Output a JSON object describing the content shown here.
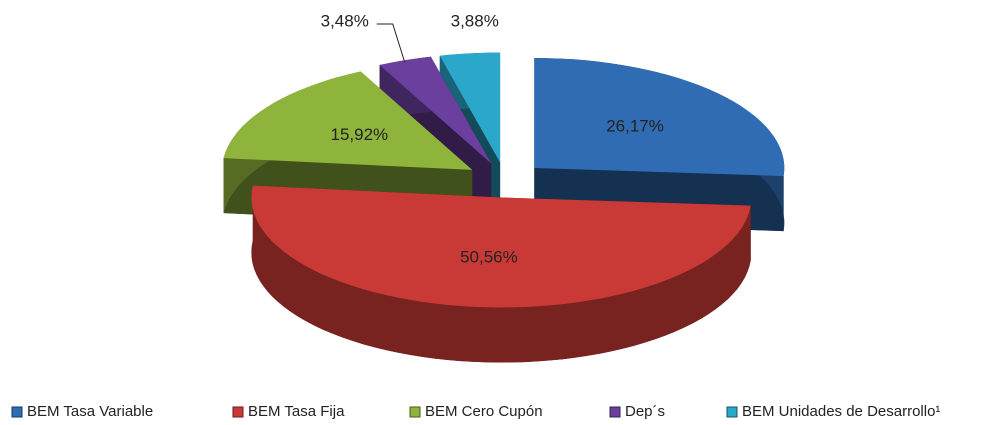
{
  "chart_data": {
    "type": "pie3d",
    "categories": [
      "BEM Tasa Variable",
      "BEM Tasa Fija",
      "BEM Cero Cupón",
      "Dep´s",
      "BEM Unidades de Desarrollo¹"
    ],
    "values": [
      26.17,
      50.56,
      15.92,
      3.48,
      3.88
    ],
    "value_labels": [
      "26,17%",
      "50,56%",
      "15,92%",
      "3,48%",
      "3,88%"
    ],
    "colors": [
      "#2f6cb3",
      "#c93a37",
      "#8fb43b",
      "#6a3f9e",
      "#2aa7c9"
    ],
    "legend": "bottom"
  }
}
